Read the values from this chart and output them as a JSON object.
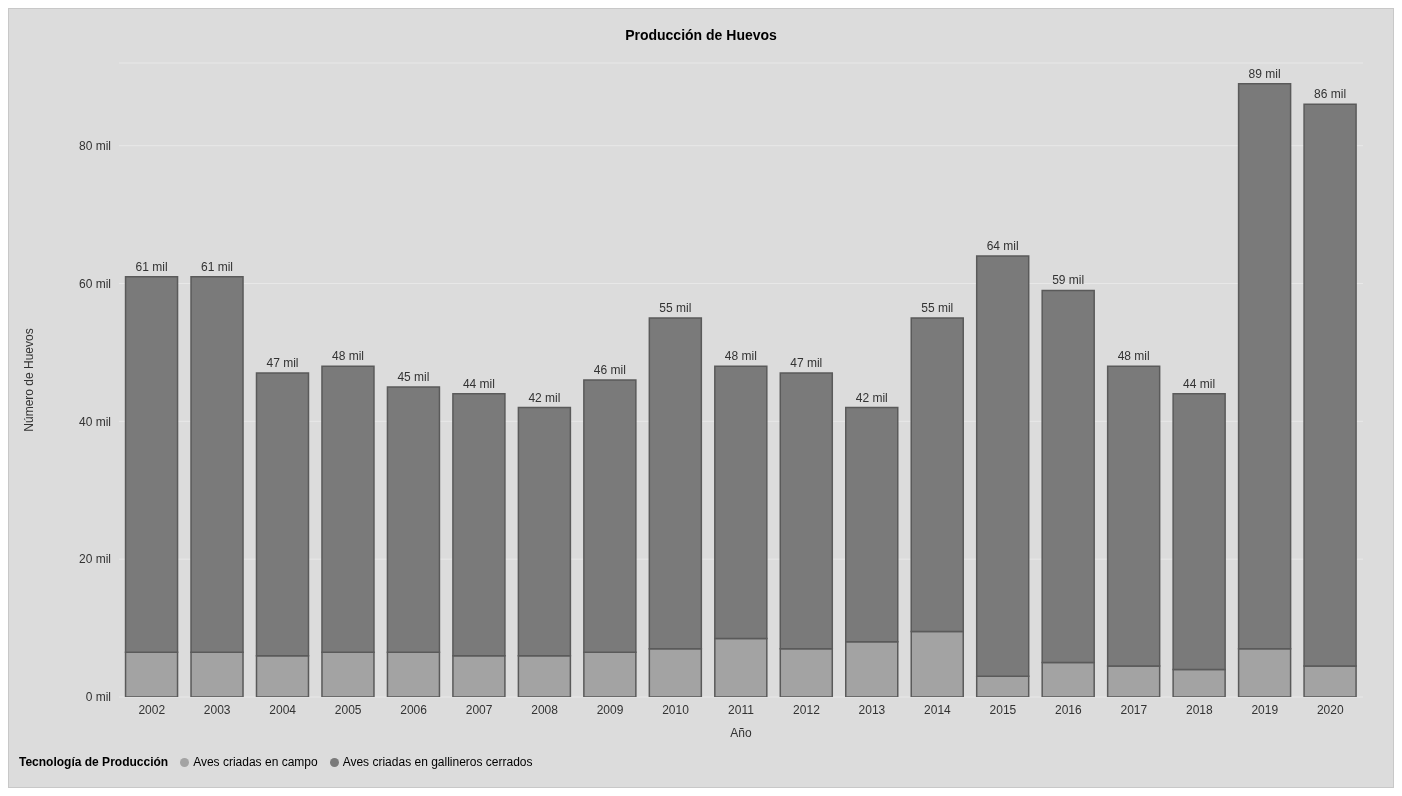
{
  "chart_data": {
    "type": "bar",
    "title": "Producción de Huevos",
    "xlabel": "Año",
    "ylabel": "Número de Huevos",
    "legend_title": "Tecnología de Producción",
    "categories": [
      "2002",
      "2003",
      "2004",
      "2005",
      "2006",
      "2007",
      "2008",
      "2009",
      "2010",
      "2011",
      "2012",
      "2013",
      "2014",
      "2015",
      "2016",
      "2017",
      "2018",
      "2019",
      "2020"
    ],
    "stacked": true,
    "series": [
      {
        "name": "Aves criadas en campo",
        "color": "#a3a3a3",
        "values": [
          6.5,
          6.5,
          6,
          6.5,
          6.5,
          6,
          6,
          6.5,
          7,
          8.5,
          7,
          8,
          9.5,
          3,
          5,
          4.5,
          4,
          7,
          4.5
        ]
      },
      {
        "name": "Aves criadas en gallineros cerrados",
        "color": "#7a7a7a",
        "values": [
          54.5,
          54.5,
          41,
          41.5,
          38.5,
          38,
          36,
          39.5,
          48,
          39.5,
          40,
          34,
          45.5,
          61,
          54,
          43.5,
          40,
          82,
          81.5
        ]
      }
    ],
    "totals": [
      "61 mil",
      "61 mil",
      "47 mil",
      "48 mil",
      "45 mil",
      "44 mil",
      "42 mil",
      "46 mil",
      "55 mil",
      "48 mil",
      "47 mil",
      "42 mil",
      "55 mil",
      "64 mil",
      "59 mil",
      "48 mil",
      "44 mil",
      "89 mil",
      "86 mil"
    ],
    "ylim": [
      0,
      92
    ],
    "yticks": [
      {
        "value": 0,
        "label": "0 mil"
      },
      {
        "value": 20,
        "label": "20 mil"
      },
      {
        "value": 40,
        "label": "40 mil"
      },
      {
        "value": 60,
        "label": "60 mil"
      },
      {
        "value": 80,
        "label": "80 mil"
      }
    ],
    "grid": "y",
    "legend": "bottom left"
  }
}
